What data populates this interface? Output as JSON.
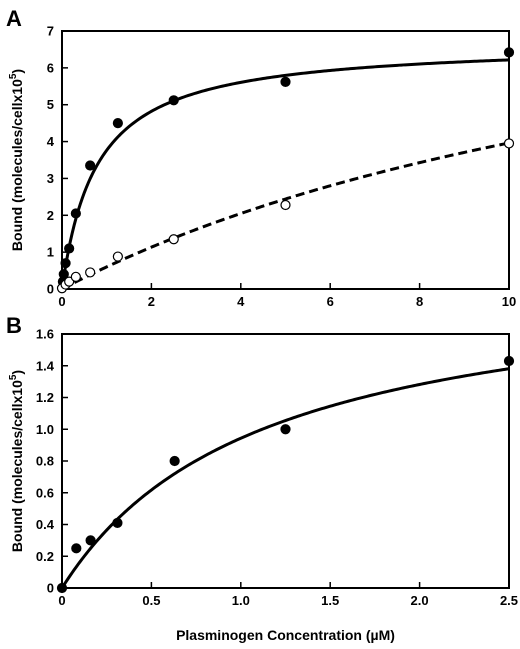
{
  "panel_a": {
    "letter": "A"
  },
  "panel_b": {
    "letter": "B"
  },
  "chart_data": [
    {
      "panel": "A",
      "type": "scatter",
      "ylabel": "Bound (molecules/cellx10",
      "ylabel_sup": "5",
      "ylabel_close": ")",
      "xlim": [
        0,
        10
      ],
      "ylim": [
        0,
        7
      ],
      "xticks": [
        0,
        2,
        4,
        6,
        8,
        10
      ],
      "xtick_labels": [
        "0",
        "2",
        "4",
        "6",
        "8",
        "10"
      ],
      "yticks": [
        0,
        1,
        2,
        3,
        4,
        5,
        6,
        7
      ],
      "ytick_labels": [
        "0",
        "1",
        "2",
        "3",
        "4",
        "5",
        "6",
        "7"
      ],
      "grid": false,
      "series": [
        {
          "marker": "filled-circle",
          "line": "solid",
          "x": [
            0.02,
            0.04,
            0.08,
            0.16,
            0.31,
            0.63,
            1.25,
            2.5,
            5,
            10
          ],
          "y": [
            0.2,
            0.4,
            0.7,
            1.1,
            2.05,
            3.35,
            4.5,
            5.12,
            5.62,
            6.42
          ],
          "fit_bmax": 6.7,
          "fit_kd": 0.78
        },
        {
          "marker": "open-circle",
          "line": "dashed",
          "x": [
            0,
            0.08,
            0.16,
            0.31,
            0.63,
            1.25,
            2.5,
            5,
            10
          ],
          "y": [
            0.02,
            0.12,
            0.2,
            0.33,
            0.45,
            0.88,
            1.35,
            2.28,
            3.95
          ],
          "fit_bmax": 10.5,
          "fit_kd": 16.5
        }
      ]
    },
    {
      "panel": "B",
      "type": "scatter",
      "xlabel": "Plasminogen Concentration (µM)",
      "ylabel": "Bound (molecules/cellx10",
      "ylabel_sup": "5",
      "ylabel_close": ")",
      "xlim": [
        0,
        2.5
      ],
      "ylim": [
        0,
        1.6
      ],
      "xticks": [
        0,
        0.5,
        1.0,
        1.5,
        2.0,
        2.5
      ],
      "xtick_labels": [
        "0",
        "0.5",
        "1.0",
        "1.5",
        "2.0",
        "2.5"
      ],
      "yticks": [
        0,
        0.2,
        0.4,
        0.6,
        0.8,
        1.0,
        1.2,
        1.4,
        1.6
      ],
      "ytick_labels": [
        "0",
        "0.2",
        "0.4",
        "0.6",
        "0.8",
        "1.0",
        "1.2",
        "1.4",
        "1.6"
      ],
      "grid": false,
      "series": [
        {
          "marker": "filled-circle",
          "line": "solid",
          "x": [
            0,
            0.08,
            0.16,
            0.31,
            0.63,
            1.25,
            2.5
          ],
          "y": [
            0.0,
            0.25,
            0.3,
            0.41,
            0.8,
            1.0,
            1.43
          ],
          "fit_bmax": 2.0,
          "fit_kd": 1.12
        }
      ]
    }
  ]
}
